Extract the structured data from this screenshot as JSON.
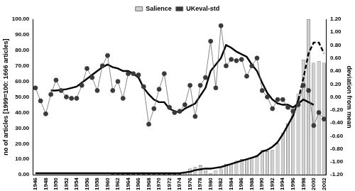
{
  "chart_data": {
    "type": "bar",
    "ylabel": "no of articles [1999=100: 1666 articles]",
    "y2label": "deviation from mean",
    "categories": [
      "1946",
      null,
      "1948",
      null,
      "1950",
      null,
      "1952",
      null,
      "1954",
      null,
      "1956",
      null,
      "1958",
      null,
      "1960",
      null,
      "1962",
      null,
      "1964",
      null,
      "1966",
      null,
      "1968",
      null,
      "1970",
      null,
      "1972",
      null,
      "1974",
      null,
      "1976",
      null,
      "1978",
      null,
      "1980",
      null,
      "1982",
      null,
      "1984",
      null,
      "1986",
      null,
      "1988",
      null,
      "1990",
      null,
      "1992",
      null,
      "1994",
      null,
      "1996",
      null,
      "1998",
      null,
      "2000",
      null,
      "2002"
    ],
    "ylim": [
      0,
      100
    ],
    "yticks": [
      {
        "value": 0,
        "label": "0.00"
      },
      {
        "value": 10,
        "label": "10.00"
      },
      {
        "value": 20,
        "label": "20.00"
      },
      {
        "value": 30,
        "label": "30.00"
      },
      {
        "value": 40,
        "label": "40.00"
      },
      {
        "value": 50,
        "label": "50.00"
      },
      {
        "value": 60,
        "label": "60.00"
      },
      {
        "value": 70,
        "label": "70.00"
      },
      {
        "value": 80,
        "label": "80.00"
      },
      {
        "value": 90,
        "label": "90.00"
      },
      {
        "value": 100,
        "label": "100.00"
      }
    ],
    "y2lim": [
      -1.2,
      1.2
    ],
    "y2ticks": [
      {
        "value": -1.2,
        "label": "-1.20"
      },
      {
        "value": -1.0,
        "label": "-1.00"
      },
      {
        "value": -0.8,
        "label": "-0.80"
      },
      {
        "value": -0.6,
        "label": "-0.60"
      },
      {
        "value": -0.4,
        "label": "-0.40"
      },
      {
        "value": -0.2,
        "label": "-0.20"
      },
      {
        "value": 0,
        "label": "0.00"
      },
      {
        "value": 0.2,
        "label": "0.20"
      },
      {
        "value": 0.4,
        "label": "0.40"
      },
      {
        "value": 0.6,
        "label": "0.60"
      },
      {
        "value": 0.8,
        "label": "0.80"
      },
      {
        "value": 1.0,
        "label": "1.00"
      },
      {
        "value": 1.2,
        "label": "1.20"
      }
    ],
    "grid": false,
    "legend": "top",
    "series": [
      {
        "name": "Salience",
        "type": "bar",
        "color": "#d0d0d0",
        "values": [
          0,
          0,
          0,
          0,
          0,
          0,
          0,
          0,
          0,
          0,
          0,
          0,
          0,
          0,
          0,
          0.5,
          0.5,
          0.5,
          0.5,
          0.5,
          0.5,
          0.5,
          0.5,
          0.5,
          0.5,
          0.5,
          0.5,
          0.5,
          0.5,
          1,
          4,
          5,
          6,
          3,
          1,
          3,
          4,
          7,
          7,
          9,
          10,
          10,
          11,
          13,
          16,
          15,
          16,
          20,
          27,
          33,
          44,
          52,
          74,
          100,
          72,
          73,
          72
        ]
      },
      {
        "name": "UKeval-std",
        "type": "line",
        "axis": "y2",
        "color": "#3a3a3a",
        "marker": "circle",
        "line_style": "solid",
        "values": [
          0.14,
          -0.06,
          -0.26,
          0.04,
          0.26,
          0.1,
          0.0,
          -0.02,
          -0.02,
          0.18,
          0.44,
          0.3,
          0.1,
          0.48,
          0.64,
          0.1,
          0.24,
          -0.02,
          0.36,
          0.36,
          0.34,
          0.16,
          -0.42,
          -0.18,
          0.12,
          0.36,
          -0.16,
          -0.24,
          -0.22,
          -0.12,
          0.18,
          -0.3,
          0.18,
          0.3,
          0.86,
          0.14,
          1.1,
          0.48,
          0.58,
          0.56,
          0.58,
          0.32,
          0.48,
          0.6,
          0.1,
          0.0,
          -0.18,
          -0.04,
          -0.04,
          -0.16,
          -0.22,
          -0.12,
          0.18,
          0.1,
          -0.44,
          -0.24,
          -0.34
        ]
      },
      {
        "type": "line",
        "axis": "y2",
        "color": "#000000",
        "marker": "none",
        "line_style": "solid",
        "values": [
          null,
          null,
          null,
          0.1,
          0.1,
          0.11,
          0.12,
          0.14,
          0.16,
          0.22,
          0.28,
          0.34,
          0.4,
          0.46,
          0.5,
          0.46,
          0.44,
          0.4,
          0.4,
          0.36,
          0.3,
          0.14,
          0.04,
          -0.04,
          -0.08,
          -0.08,
          -0.18,
          -0.22,
          -0.24,
          -0.18,
          -0.14,
          -0.1,
          0.02,
          0.14,
          0.4,
          0.5,
          0.6,
          0.8,
          0.76,
          0.7,
          0.66,
          0.62,
          0.5,
          0.4,
          0.22,
          0.06,
          -0.04,
          -0.1,
          -0.12,
          -0.12,
          -0.16,
          -0.1,
          -0.04,
          -0.08,
          -0.12,
          null,
          null
        ]
      },
      {
        "type": "line",
        "color": "#000000",
        "marker": "none",
        "line_style": "solid",
        "values": [
          1,
          1,
          1,
          1,
          1,
          1,
          1,
          1,
          1,
          1,
          1,
          1,
          1,
          1,
          1,
          1,
          1,
          1,
          1,
          1,
          1,
          1,
          1,
          1,
          1,
          1,
          1,
          1,
          1,
          1.5,
          2,
          3,
          3.5,
          4,
          4,
          4.5,
          5,
          6,
          7,
          8,
          9,
          10,
          11,
          12,
          15,
          16,
          18,
          21,
          26,
          32,
          38,
          48,
          null,
          null,
          null,
          null,
          null
        ]
      },
      {
        "type": "line",
        "color": "#000000",
        "marker": "none",
        "line_style": "dashed",
        "values": [
          null,
          null,
          null,
          null,
          null,
          null,
          null,
          null,
          null,
          null,
          null,
          null,
          null,
          null,
          null,
          null,
          null,
          null,
          null,
          null,
          null,
          null,
          null,
          null,
          null,
          null,
          null,
          null,
          null,
          null,
          null,
          null,
          null,
          null,
          null,
          null,
          null,
          null,
          null,
          null,
          null,
          null,
          null,
          null,
          null,
          null,
          null,
          null,
          null,
          null,
          null,
          48,
          62,
          78,
          85,
          85,
          78
        ]
      }
    ]
  }
}
